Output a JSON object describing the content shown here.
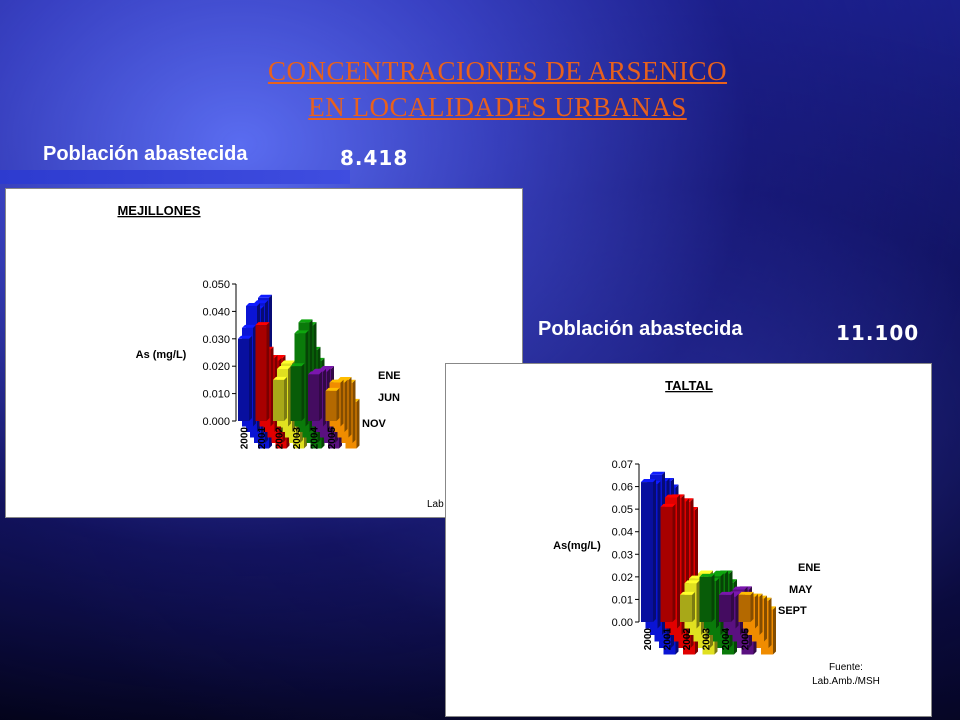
{
  "slide": {
    "title_line1": "CONCENTRACIONES  DE ARSENICO",
    "title_line2": " EN LOCALIDADES  URBANAS "
  },
  "mejillones": {
    "population_label": "Población abastecida",
    "population_value": "8.418"
  },
  "taltal": {
    "population_label": "Población abastecida",
    "population_value": "11.100"
  },
  "colors": {
    "2000": "#0a14d4",
    "2001": "#e00000",
    "2002": "#e0e020",
    "2003": "#0a7a0a",
    "2004": "#5a1080",
    "2005": "#f08c00"
  },
  "chart_data": [
    {
      "type": "bar",
      "title": "MEJILLONES",
      "ylabel": "As (mg/L)",
      "ylim": [
        0,
        0.05
      ],
      "yticks": [
        "0.000",
        "0.010",
        "0.020",
        "0.030",
        "0.040",
        "0.050"
      ],
      "categories": [
        "2000",
        "2001",
        "2002",
        "2003",
        "2004",
        "2005"
      ],
      "depth_labels": [
        "ENE",
        "JUN",
        "NOV"
      ],
      "series": [
        {
          "name": "2000",
          "values": [
            0.03,
            0.036,
            0.046,
            0.047,
            0.051,
            0.055
          ]
        },
        {
          "name": "2001",
          "values": [
            0.035,
            0.028,
            0.027,
            0.028,
            0.031,
            0.029
          ]
        },
        {
          "name": "2002",
          "values": [
            0.015,
            0.021,
            0.025,
            0.026,
            0.023,
            0.022
          ]
        },
        {
          "name": "2003",
          "values": [
            0.02,
            0.034,
            0.04,
            0.041,
            0.034,
            0.032
          ]
        },
        {
          "name": "2004",
          "values": [
            0.017,
            0.02,
            0.022,
            0.025,
            0.021,
            0.02
          ]
        },
        {
          "name": "2005",
          "values": [
            0.011,
            0.016,
            0.018,
            0.021,
            0.022,
            0.017
          ]
        }
      ],
      "source_partial": "Lab"
    },
    {
      "type": "bar",
      "title": "TALTAL",
      "ylabel": "As(mg/L)",
      "ylim": [
        0,
        0.07
      ],
      "yticks": [
        "0.00",
        "0.01",
        "0.02",
        "0.03",
        "0.04",
        "0.05",
        "0.06",
        "0.07"
      ],
      "categories": [
        "2000",
        "2001",
        "2002",
        "2003",
        "2004",
        "2005"
      ],
      "depth_labels": [
        "ENE",
        "MAY",
        "SEPT"
      ],
      "series": [
        {
          "name": "2000",
          "values": [
            0.062,
            0.064,
            0.071,
            0.071,
            0.074,
            0.074
          ]
        },
        {
          "name": "2001",
          "values": [
            0.051,
            0.058,
            0.061,
            0.062,
            0.065,
            0.064
          ]
        },
        {
          "name": "2002",
          "values": [
            0.012,
            0.02,
            0.025,
            0.027,
            0.033,
            0.03
          ]
        },
        {
          "name": "2003",
          "values": [
            0.02,
            0.021,
            0.026,
            0.03,
            0.033,
            0.032
          ]
        },
        {
          "name": "2004",
          "values": [
            0.012,
            0.014,
            0.018,
            0.023,
            0.026,
            0.025
          ]
        },
        {
          "name": "2005",
          "values": [
            0.012,
            0.014,
            0.017,
            0.019,
            0.021,
            0.02
          ]
        }
      ],
      "source_line1": "Fuente:",
      "source_line2": "Lab.Amb./MSH"
    }
  ]
}
